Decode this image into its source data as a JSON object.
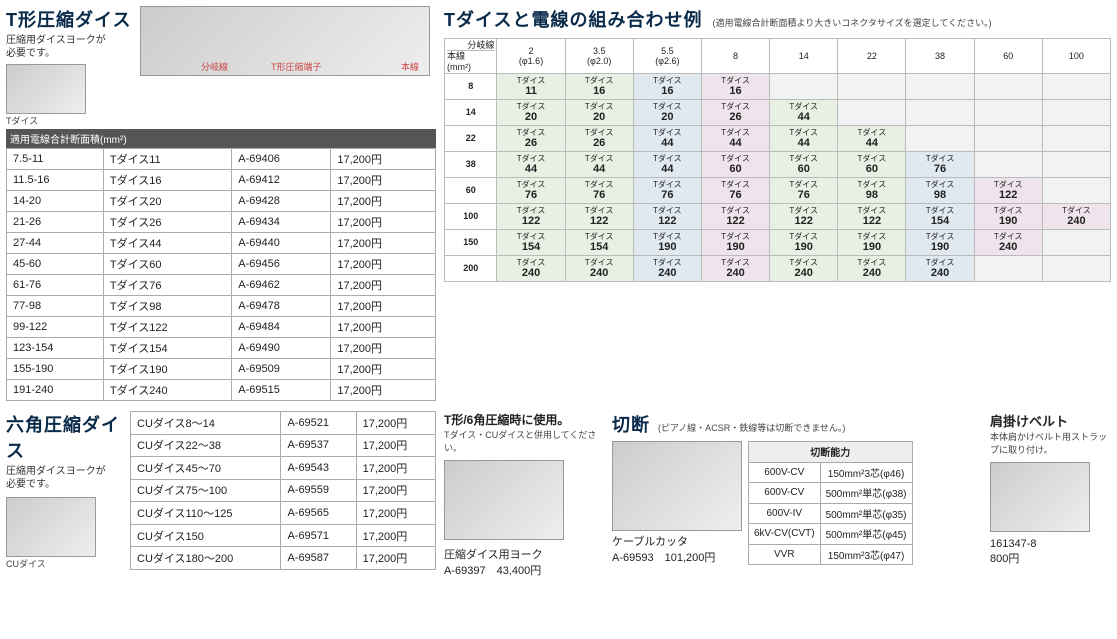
{
  "tdie": {
    "title": "T形圧縮ダイス",
    "note1": "圧縮用ダイスヨークが",
    "note2": "必要です。",
    "imglabel": "Tダイス",
    "diaglabels": {
      "a": "分岐線",
      "b": "T形圧縮端子",
      "c": "本線"
    },
    "header": "適用電線合計断面積(mm²)",
    "rows": [
      [
        "7.5-11",
        "Tダイス11",
        "A-69406",
        "17,200円"
      ],
      [
        "11.5-16",
        "Tダイス16",
        "A-69412",
        "17,200円"
      ],
      [
        "14-20",
        "Tダイス20",
        "A-69428",
        "17,200円"
      ],
      [
        "21-26",
        "Tダイス26",
        "A-69434",
        "17,200円"
      ],
      [
        "27-44",
        "Tダイス44",
        "A-69440",
        "17,200円"
      ],
      [
        "45-60",
        "Tダイス60",
        "A-69456",
        "17,200円"
      ],
      [
        "61-76",
        "Tダイス76",
        "A-69462",
        "17,200円"
      ],
      [
        "77-98",
        "Tダイス98",
        "A-69478",
        "17,200円"
      ],
      [
        "99-122",
        "Tダイス122",
        "A-69484",
        "17,200円"
      ],
      [
        "123-154",
        "Tダイス154",
        "A-69490",
        "17,200円"
      ],
      [
        "155-190",
        "Tダイス190",
        "A-69509",
        "17,200円"
      ],
      [
        "191-240",
        "Tダイス240",
        "A-69515",
        "17,200円"
      ]
    ]
  },
  "combo": {
    "title": "Tダイスと電線の組み合わせ例",
    "note": "(適用電線合計断面積より大きいコネクタサイズを選定してください。)",
    "corner1": "分岐線",
    "corner2": "本線",
    "corner3": "(mm²)",
    "cols": [
      "2\n(φ1.6)",
      "3.5\n(φ2.0)",
      "5.5\n(φ2.6)",
      "8",
      "14",
      "22",
      "38",
      "60",
      "100"
    ],
    "rows": [
      {
        "h": "8",
        "c": [
          [
            "11",
            1
          ],
          [
            "16",
            1
          ],
          [
            "16",
            2
          ],
          [
            "16",
            3
          ],
          [
            "",
            4
          ],
          [
            "",
            4
          ],
          [
            "",
            4
          ],
          [
            "",
            4
          ],
          [
            "",
            4
          ]
        ]
      },
      {
        "h": "14",
        "c": [
          [
            "20",
            1
          ],
          [
            "20",
            1
          ],
          [
            "20",
            2
          ],
          [
            "26",
            3
          ],
          [
            "44",
            1
          ],
          [
            "",
            4
          ],
          [
            "",
            4
          ],
          [
            "",
            4
          ],
          [
            "",
            4
          ]
        ]
      },
      {
        "h": "22",
        "c": [
          [
            "26",
            1
          ],
          [
            "26",
            1
          ],
          [
            "44",
            2
          ],
          [
            "44",
            3
          ],
          [
            "44",
            1
          ],
          [
            "44",
            1
          ],
          [
            "",
            4
          ],
          [
            "",
            4
          ],
          [
            "",
            4
          ]
        ]
      },
      {
        "h": "38",
        "c": [
          [
            "44",
            1
          ],
          [
            "44",
            1
          ],
          [
            "44",
            2
          ],
          [
            "60",
            3
          ],
          [
            "60",
            1
          ],
          [
            "60",
            1
          ],
          [
            "76",
            2
          ],
          [
            "",
            4
          ],
          [
            "",
            4
          ]
        ]
      },
      {
        "h": "60",
        "c": [
          [
            "76",
            1
          ],
          [
            "76",
            1
          ],
          [
            "76",
            2
          ],
          [
            "76",
            3
          ],
          [
            "76",
            1
          ],
          [
            "98",
            1
          ],
          [
            "98",
            2
          ],
          [
            "122",
            3
          ],
          [
            "",
            4
          ]
        ]
      },
      {
        "h": "100",
        "c": [
          [
            "122",
            1
          ],
          [
            "122",
            1
          ],
          [
            "122",
            2
          ],
          [
            "122",
            3
          ],
          [
            "122",
            1
          ],
          [
            "122",
            1
          ],
          [
            "154",
            2
          ],
          [
            "190",
            3
          ],
          [
            "240",
            3
          ]
        ]
      },
      {
        "h": "150",
        "c": [
          [
            "154",
            1
          ],
          [
            "154",
            1
          ],
          [
            "190",
            2
          ],
          [
            "190",
            3
          ],
          [
            "190",
            1
          ],
          [
            "190",
            1
          ],
          [
            "190",
            2
          ],
          [
            "240",
            3
          ],
          [
            "",
            4
          ]
        ]
      },
      {
        "h": "200",
        "c": [
          [
            "240",
            1
          ],
          [
            "240",
            1
          ],
          [
            "240",
            2
          ],
          [
            "240",
            3
          ],
          [
            "240",
            1
          ],
          [
            "240",
            1
          ],
          [
            "240",
            2
          ],
          [
            "",
            4
          ],
          [
            "",
            4
          ]
        ]
      }
    ],
    "cellprefix": "Tダイス"
  },
  "hex": {
    "title": "六角圧縮ダイス",
    "note1": "圧縮用ダイスヨークが",
    "note2": "必要です。",
    "imglabel": "CUダイス",
    "rows": [
      [
        "CUダイス8～14",
        "A-69521",
        "17,200円"
      ],
      [
        "CUダイス22～38",
        "A-69537",
        "17,200円"
      ],
      [
        "CUダイス45～70",
        "A-69543",
        "17,200円"
      ],
      [
        "CUダイス75～100",
        "A-69559",
        "17,200円"
      ],
      [
        "CUダイス110～125",
        "A-69565",
        "17,200円"
      ],
      [
        "CUダイス150",
        "A-69571",
        "17,200円"
      ],
      [
        "CUダイス180～200",
        "A-69587",
        "17,200円"
      ]
    ]
  },
  "yoke": {
    "title": "T形/6角圧縮時に使用。",
    "sub": "Tダイス・CUダイスと併用してください。",
    "name": "圧縮ダイス用ヨーク",
    "code": "A-69397",
    "price": "43,400円"
  },
  "cut": {
    "title": "切断",
    "note": "(ピアノ線・ACSR・鉄線等は切断できません。)",
    "tblhdr": "切断能力",
    "rows": [
      [
        "600V-CV",
        "150mm²3芯(φ46)"
      ],
      [
        "600V-CV",
        "500mm²単芯(φ38)"
      ],
      [
        "600V-IV",
        "500mm²単芯(φ35)"
      ],
      [
        "6kV-CV(CVT)",
        "500mm²単芯(φ45)"
      ],
      [
        "VVR",
        "150mm²3芯(φ47)"
      ]
    ],
    "name": "ケーブルカッタ",
    "code": "A-69593",
    "price": "101,200円"
  },
  "belt": {
    "title": "肩掛けベルト",
    "note": "本体肩かけベルト用ストラップに取り付け。",
    "code": "161347-8",
    "price": "800円"
  }
}
